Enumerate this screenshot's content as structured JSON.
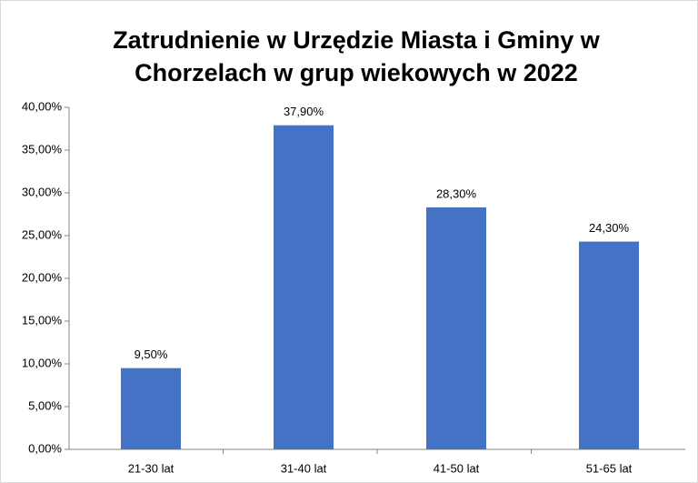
{
  "chart_data": {
    "type": "bar",
    "title": [
      "Zatrudnienie w Urzędzie Miasta i Gminy w",
      "Chorzelach w grup wiekowych  w 2022"
    ],
    "categories": [
      "21-30 lat",
      "31-40 lat",
      "41-50 lat",
      "51-65 lat"
    ],
    "values": [
      9.5,
      37.9,
      28.3,
      24.3
    ],
    "value_labels": [
      "9,50%",
      "37,90%",
      "28,30%",
      "24,30%"
    ],
    "color": "#4472c4",
    "ylim": [
      0,
      40
    ],
    "yticks": [
      {
        "value": 0,
        "label": "0,00%"
      },
      {
        "value": 5,
        "label": "5,00%"
      },
      {
        "value": 10,
        "label": "10,00%"
      },
      {
        "value": 15,
        "label": "15,00%"
      },
      {
        "value": 20,
        "label": "20,00%"
      },
      {
        "value": 25,
        "label": "25,00%"
      },
      {
        "value": 30,
        "label": "30,00%"
      },
      {
        "value": 35,
        "label": "35,00%"
      },
      {
        "value": 40,
        "label": "40,00%"
      }
    ],
    "grid": false
  }
}
